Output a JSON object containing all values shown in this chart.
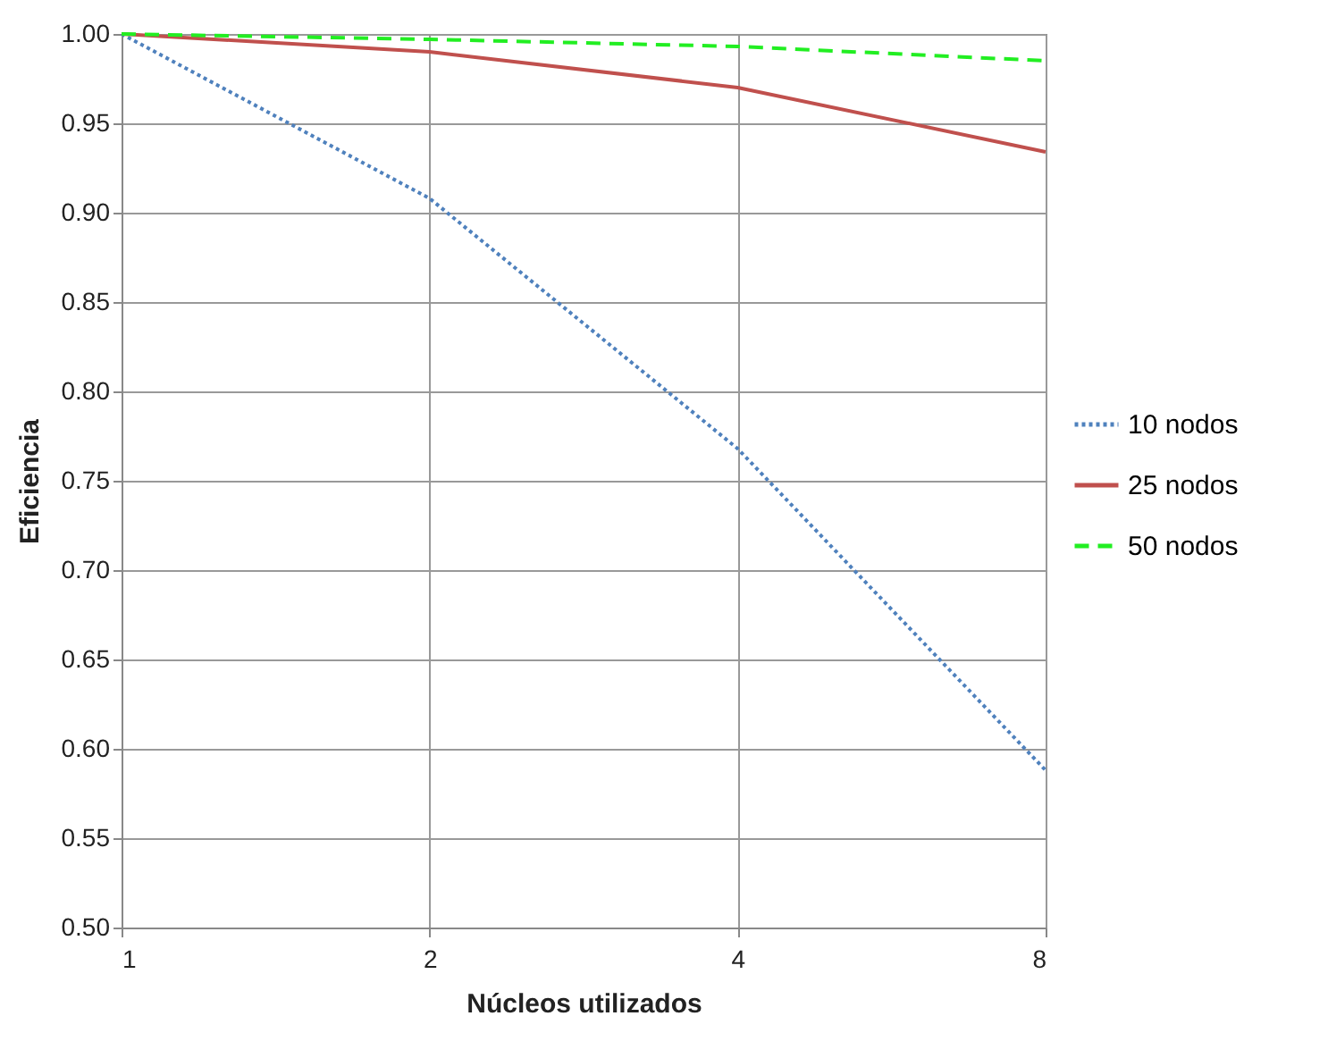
{
  "chart_data": {
    "type": "line",
    "xlabel": "Núcleos utilizados",
    "ylabel": "Eficiencia",
    "x": [
      1,
      2,
      4,
      8
    ],
    "log": "x",
    "xlim": [
      1,
      8
    ],
    "xticks": [
      1,
      2,
      4,
      8
    ],
    "ylim": [
      0.5,
      1.0
    ],
    "yticks": [
      {
        "value": 0.5,
        "label": "0.50"
      },
      {
        "value": 0.55,
        "label": "0.55"
      },
      {
        "value": 0.6,
        "label": "0.60"
      },
      {
        "value": 0.65,
        "label": "0.65"
      },
      {
        "value": 0.7,
        "label": "0.70"
      },
      {
        "value": 0.75,
        "label": "0.75"
      },
      {
        "value": 0.8,
        "label": "0.80"
      },
      {
        "value": 0.85,
        "label": "0.85"
      },
      {
        "value": 0.9,
        "label": "0.90"
      },
      {
        "value": 0.95,
        "label": "0.95"
      },
      {
        "value": 1.0,
        "label": "1.00"
      }
    ],
    "grid": true,
    "legend": "right",
    "marker": "none",
    "series": [
      {
        "name": "10 nodos",
        "color": "#4f81bd",
        "line_style": "dotted",
        "values": [
          1.0,
          0.908,
          0.768,
          0.588
        ]
      },
      {
        "name": "25 nodos",
        "color": "#c0504d",
        "line_style": "solid",
        "values": [
          1.0,
          0.99,
          0.97,
          0.934
        ]
      },
      {
        "name": "50 nodos",
        "color": "#22ee22",
        "line_style": "dashed",
        "values": [
          1.0,
          0.997,
          0.993,
          0.985
        ]
      }
    ]
  }
}
